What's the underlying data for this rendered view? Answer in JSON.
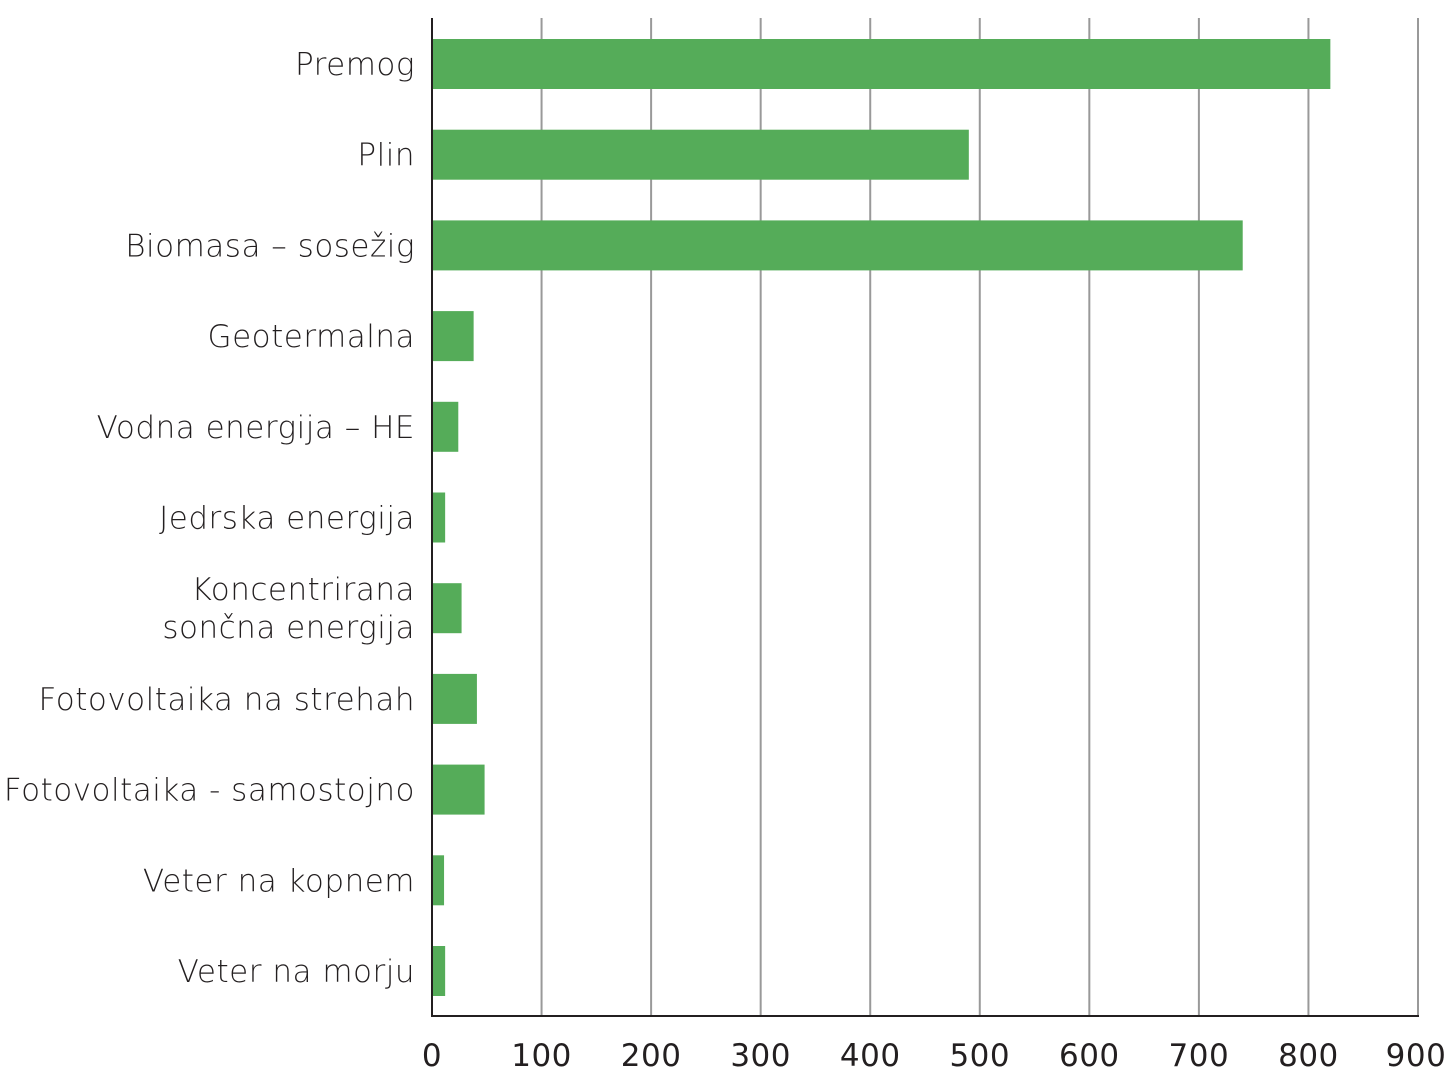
{
  "chart_data": {
    "type": "bar",
    "orientation": "horizontal",
    "categories": [
      [
        "Premog"
      ],
      [
        "Plin"
      ],
      [
        "Biomasa –  sosežig"
      ],
      [
        "Geotermalna"
      ],
      [
        "Vodna energija –  HE"
      ],
      [
        "Jedrska energija"
      ],
      [
        "Koncentrirana",
        "sončna energija"
      ],
      [
        "Fotovoltaika na strehah"
      ],
      [
        "Fotovoltaika - samostojno"
      ],
      [
        "Veter na kopnem"
      ],
      [
        "Veter na morju"
      ]
    ],
    "values": [
      820,
      490,
      740,
      38,
      24,
      12,
      27,
      41,
      48,
      11,
      12
    ],
    "xlim": [
      0,
      900
    ],
    "xticks": [
      0,
      100,
      200,
      300,
      400,
      500,
      600,
      700,
      800,
      900
    ],
    "xtick_labels": [
      "0",
      "100",
      "200",
      "300",
      "400",
      "500",
      "600",
      "700",
      "800",
      "900"
    ],
    "bar_color": "#55ac59",
    "grid": "vertical",
    "title": "",
    "xlabel": "",
    "ylabel": ""
  }
}
